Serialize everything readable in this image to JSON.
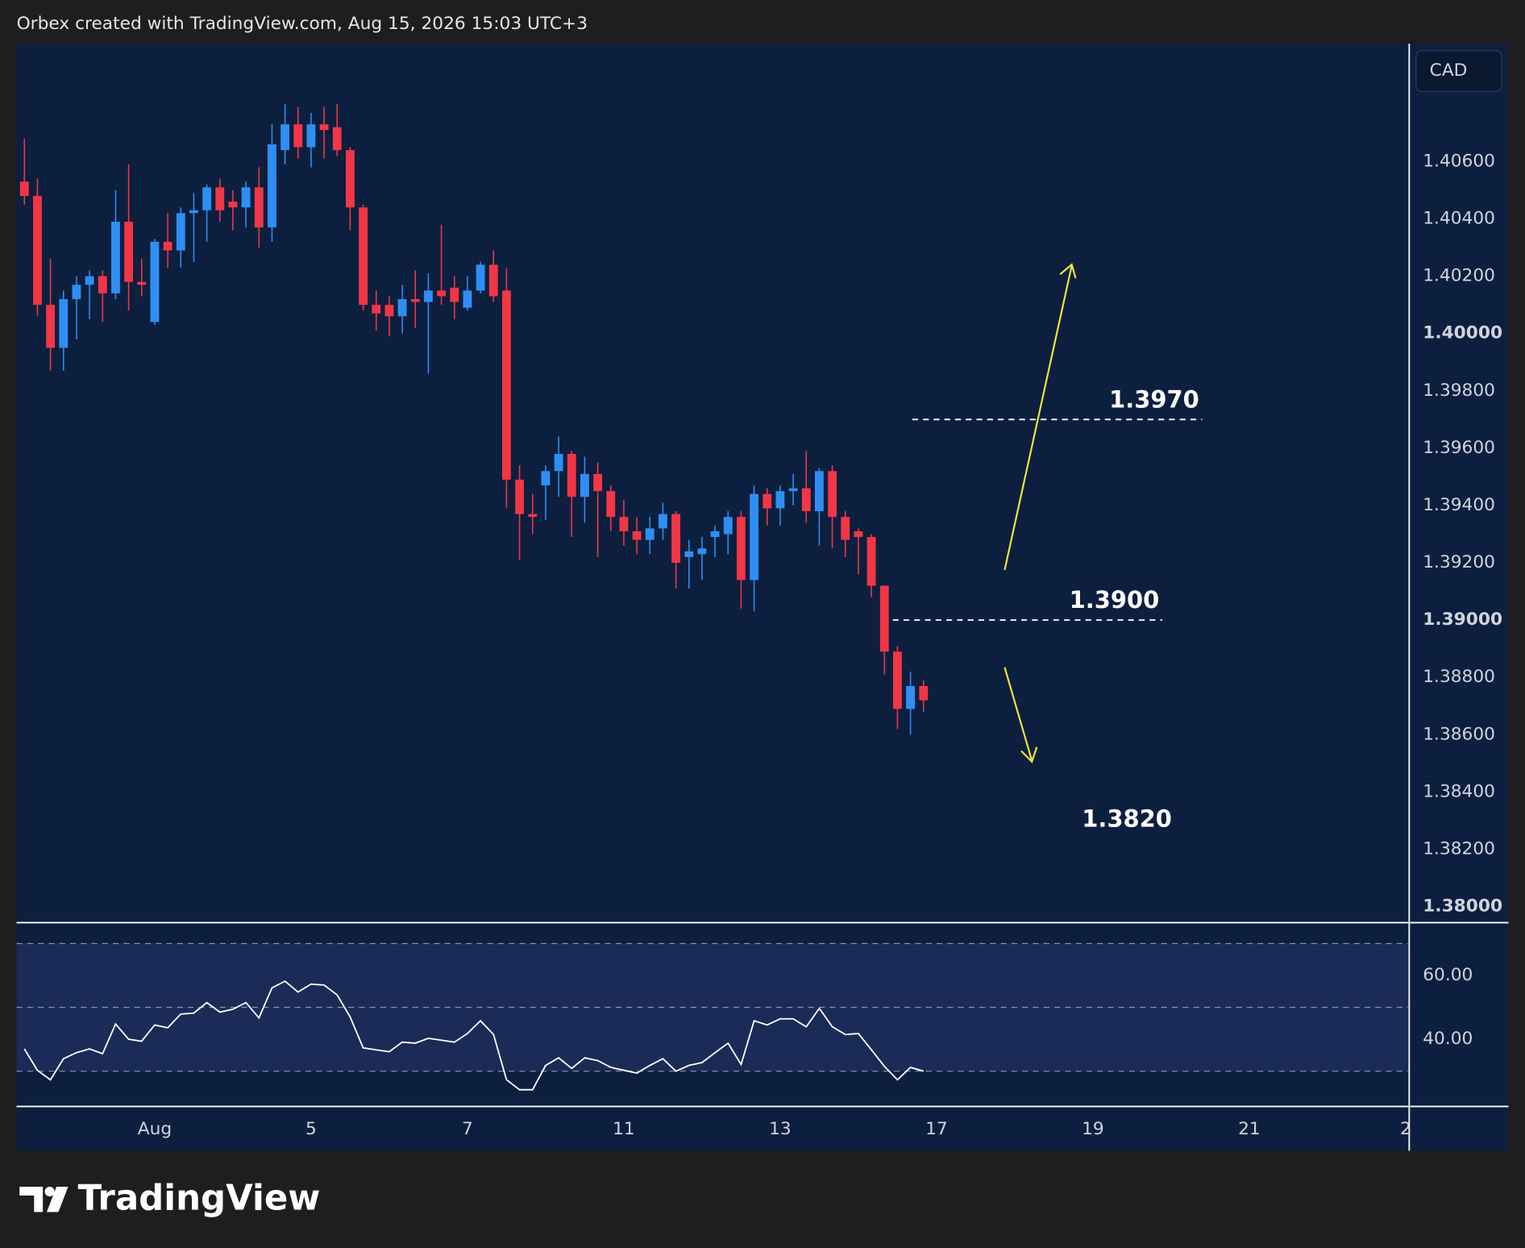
{
  "header": "Orbex created with TradingView.com, Aug 15, 2026 15:03 UTC+3",
  "brand": "TradingView",
  "chart_data": [
    {
      "type": "candlestick",
      "currency": "CAD",
      "up_color": "#2f8ef4",
      "down_color": "#f23645",
      "open": [
        1.4053,
        1.4048,
        1.401,
        1.3995,
        1.4012,
        1.4017,
        1.402,
        1.4014,
        1.4039,
        1.4018,
        1.4004,
        1.4032,
        1.4029,
        1.4042,
        1.4043,
        1.4051,
        1.4046,
        1.4044,
        1.4051,
        1.4037,
        1.4064,
        1.4073,
        1.4065,
        1.4073,
        1.4072,
        1.4064,
        1.4044,
        1.401,
        1.401,
        1.4006,
        1.4012,
        1.4011,
        1.4015,
        1.4016,
        1.4009,
        1.4015,
        1.4024,
        1.4015,
        1.3949,
        1.3937,
        1.3947,
        1.3952,
        1.3958,
        1.3943,
        1.3951,
        1.3945,
        1.3936,
        1.3931,
        1.3928,
        1.3932,
        1.3937,
        1.3922,
        1.3923,
        1.3929,
        1.393,
        1.3936,
        1.3914,
        1.3944,
        1.3939,
        1.3945,
        1.3946,
        1.3938,
        1.3952,
        1.3936,
        1.3931,
        1.3929,
        1.3912,
        1.3889,
        1.3869,
        1.3877
      ],
      "high": [
        1.4068,
        1.4054,
        1.4026,
        1.4015,
        1.402,
        1.4022,
        1.4022,
        1.405,
        1.4059,
        1.4026,
        1.4033,
        1.4042,
        1.4044,
        1.4049,
        1.4052,
        1.4054,
        1.405,
        1.4053,
        1.4058,
        1.4073,
        1.408,
        1.4079,
        1.4077,
        1.4079,
        1.408,
        1.4065,
        1.4045,
        1.4015,
        1.4013,
        1.4017,
        1.4022,
        1.4021,
        1.4038,
        1.402,
        1.402,
        1.4025,
        1.4029,
        1.4023,
        1.3954,
        1.3944,
        1.3954,
        1.3964,
        1.3959,
        1.3957,
        1.3955,
        1.3947,
        1.3942,
        1.3936,
        1.3936,
        1.3941,
        1.3938,
        1.3928,
        1.3929,
        1.3933,
        1.3938,
        1.3938,
        1.3947,
        1.3946,
        1.3947,
        1.3951,
        1.3959,
        1.3953,
        1.3954,
        1.3938,
        1.3932,
        1.393,
        1.3912,
        1.3891,
        1.3882,
        1.3879
      ],
      "low": [
        1.4045,
        1.4006,
        1.3987,
        1.3987,
        1.3998,
        1.4005,
        1.4004,
        1.4012,
        1.4008,
        1.4013,
        1.4003,
        1.4023,
        1.4023,
        1.4025,
        1.4032,
        1.4039,
        1.4036,
        1.4037,
        1.403,
        1.4032,
        1.4059,
        1.4061,
        1.4058,
        1.4061,
        1.4062,
        1.4036,
        1.4008,
        1.4001,
        1.3999,
        1.4,
        1.4002,
        1.3986,
        1.401,
        1.4005,
        1.4008,
        1.4014,
        1.4011,
        1.3939,
        1.3921,
        1.393,
        1.3935,
        1.3943,
        1.3929,
        1.3934,
        1.3922,
        1.3931,
        1.3926,
        1.3923,
        1.3923,
        1.3928,
        1.3911,
        1.3911,
        1.3914,
        1.3922,
        1.3923,
        1.3904,
        1.3903,
        1.3933,
        1.3933,
        1.394,
        1.3934,
        1.3926,
        1.3925,
        1.3922,
        1.3916,
        1.3908,
        1.3881,
        1.3862,
        1.386,
        1.3868
      ],
      "close": [
        1.4048,
        1.401,
        1.3995,
        1.4012,
        1.4017,
        1.402,
        1.4014,
        1.4039,
        1.4018,
        1.4017,
        1.4032,
        1.4029,
        1.4042,
        1.4043,
        1.4051,
        1.4043,
        1.4044,
        1.4051,
        1.4037,
        1.4066,
        1.4073,
        1.4065,
        1.4073,
        1.4071,
        1.4064,
        1.4044,
        1.401,
        1.4007,
        1.4006,
        1.4012,
        1.4011,
        1.4015,
        1.4013,
        1.4011,
        1.4015,
        1.4024,
        1.4013,
        1.3949,
        1.3937,
        1.3936,
        1.3952,
        1.3958,
        1.3943,
        1.3951,
        1.3945,
        1.3936,
        1.3931,
        1.3928,
        1.3932,
        1.3937,
        1.392,
        1.3924,
        1.3925,
        1.3931,
        1.3936,
        1.3914,
        1.3944,
        1.3939,
        1.3945,
        1.3946,
        1.3938,
        1.3952,
        1.3936,
        1.3928,
        1.3929,
        1.3912,
        1.3889,
        1.3869,
        1.3877,
        1.3872
      ],
      "ylim": [
        1.37946,
        1.41011
      ],
      "yticks": [
        {
          "value": 1.38,
          "label": "1.38000"
        },
        {
          "value": 1.382,
          "label": "1.38200"
        },
        {
          "value": 1.384,
          "label": "1.38400"
        },
        {
          "value": 1.386,
          "label": "1.38600"
        },
        {
          "value": 1.388,
          "label": "1.38800"
        },
        {
          "value": 1.39,
          "label": "1.39000"
        },
        {
          "value": 1.392,
          "label": "1.39200"
        },
        {
          "value": 1.394,
          "label": "1.39400"
        },
        {
          "value": 1.396,
          "label": "1.39600"
        },
        {
          "value": 1.398,
          "label": "1.39800"
        },
        {
          "value": 1.4,
          "label": "1.40000"
        },
        {
          "value": 1.402,
          "label": "1.40200"
        },
        {
          "value": 1.404,
          "label": "1.40400"
        },
        {
          "value": 1.406,
          "label": "1.40600"
        }
      ],
      "xlim": [
        -0.6,
        106.2
      ],
      "xticks": [
        {
          "value": 10,
          "label": "Aug"
        },
        {
          "value": 22,
          "label": "5"
        },
        {
          "value": 34,
          "label": "7"
        },
        {
          "value": 46,
          "label": "11"
        },
        {
          "value": 58,
          "label": "13"
        },
        {
          "value": 70,
          "label": "17"
        },
        {
          "value": 82,
          "label": "19"
        },
        {
          "value": 94,
          "label": "21"
        },
        {
          "value": 106,
          "label": "2"
        }
      ],
      "levels": [
        {
          "value": 1.397,
          "label": "1.3970",
          "dashed": true
        },
        {
          "value": 1.39,
          "label": "1.3900",
          "dashed": true
        },
        {
          "value": 1.382,
          "label": "1.3820",
          "dashed": false
        }
      ],
      "level_color": "#ffffff"
    },
    {
      "type": "line",
      "color": "#ffffff",
      "values": [
        37.0,
        30.3,
        27.3,
        33.9,
        35.8,
        37.0,
        35.5,
        44.8,
        40.0,
        39.4,
        44.5,
        43.6,
        47.9,
        48.2,
        51.5,
        48.5,
        49.4,
        51.5,
        46.7,
        56.1,
        58.2,
        54.8,
        57.3,
        57.0,
        53.9,
        47.0,
        37.3,
        36.7,
        36.1,
        39.1,
        38.8,
        40.3,
        39.7,
        39.1,
        41.8,
        45.8,
        41.5,
        27.3,
        24.2,
        24.2,
        31.8,
        34.2,
        30.9,
        34.2,
        33.3,
        31.2,
        30.3,
        29.4,
        31.8,
        33.9,
        30.0,
        31.8,
        32.7,
        35.8,
        38.8,
        32.1,
        45.8,
        44.5,
        46.4,
        46.4,
        43.9,
        49.7,
        43.9,
        41.5,
        41.8,
        36.7,
        31.5,
        27.3,
        31.2,
        30.0
      ],
      "ylim": [
        19.1,
        76.4
      ],
      "yticks": [
        {
          "value": 60,
          "label": "60.00"
        },
        {
          "value": 40,
          "label": "40.00"
        }
      ],
      "levels": [
        70,
        50,
        30
      ],
      "band_color": "#1b2b57"
    }
  ]
}
